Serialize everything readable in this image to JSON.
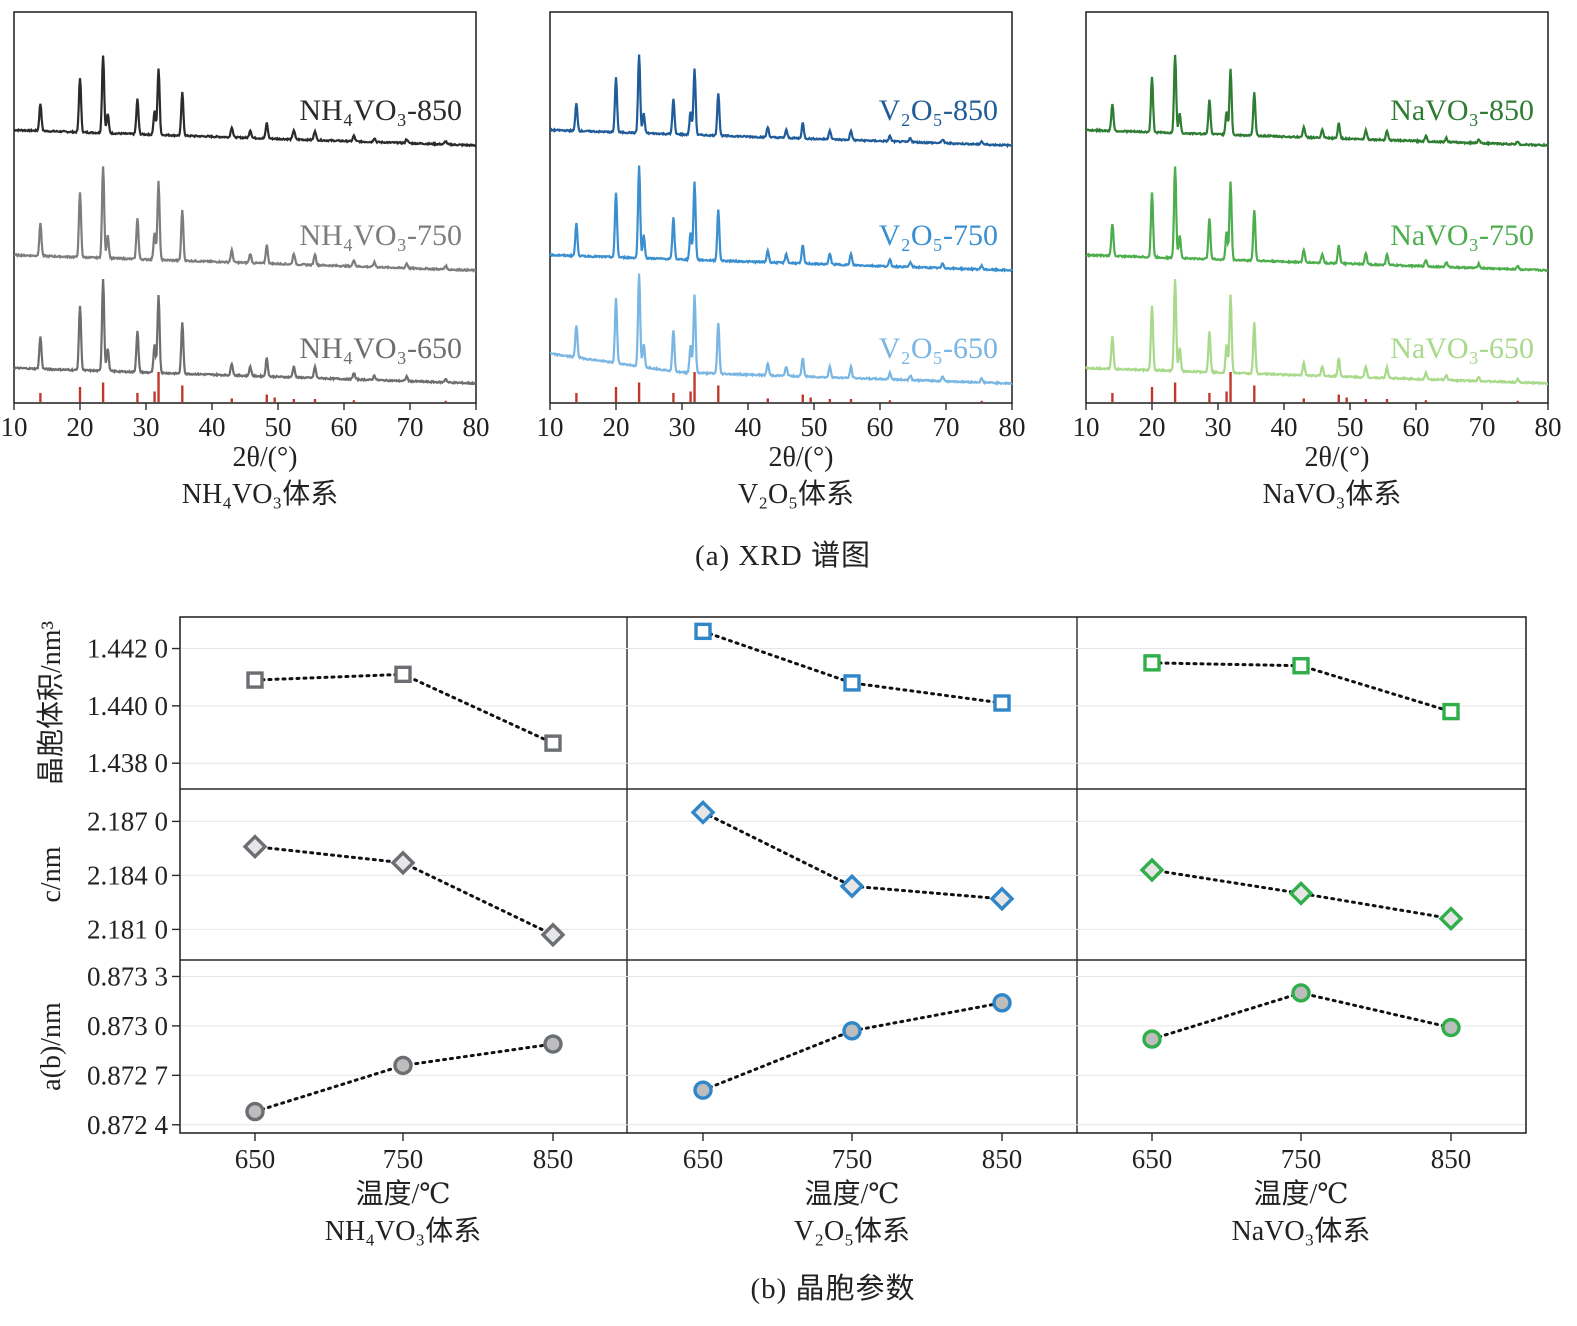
{
  "captions": {
    "a": "(a) XRD 谱图",
    "b": "(b) 晶胞参数"
  },
  "xrd": {
    "xlabel": "2θ/(°)",
    "xticks": [
      10,
      20,
      30,
      40,
      50,
      60,
      70,
      80
    ],
    "panels": [
      {
        "system": "NH₄VO₃体系",
        "labels": [
          "NH₄VO₃-850",
          "NH₄VO₃-750",
          "NH₄VO₃-650"
        ],
        "colors": [
          "#2b2b2b",
          "#7d7d7d",
          "#6e6e6e"
        ]
      },
      {
        "system": "V₂O₅体系",
        "labels": [
          "V₂O₅-850",
          "V₂O₅-750",
          "V₂O₅-650"
        ],
        "colors": [
          "#1f5c99",
          "#3a8fd0",
          "#7ab6e3"
        ]
      },
      {
        "system": "NaVO₃体系",
        "labels": [
          "NaVO₃-850",
          "NaVO₃-750",
          "NaVO₃-650"
        ],
        "colors": [
          "#2e7d32",
          "#4cae4c",
          "#a9d98a"
        ]
      }
    ],
    "reference_color": "#c0392b"
  },
  "cell": {
    "xlabel": "温度/℃",
    "temperatures": [
      650,
      750,
      850
    ],
    "rows": [
      {
        "ylabel": "晶胞体积/nm³",
        "marker": "square",
        "yticks": [
          "1.442 0",
          "1.440 0",
          "1.438 0"
        ],
        "ytick_values": [
          1.442,
          1.44,
          1.438
        ],
        "ylim": [
          1.4371,
          1.4431
        ]
      },
      {
        "ylabel": "c/nm",
        "marker": "diamond",
        "yticks": [
          "2.187 0",
          "2.184 0",
          "2.181 0"
        ],
        "ytick_values": [
          2.187,
          2.184,
          2.181
        ],
        "ylim": [
          2.1793,
          2.1888
        ]
      },
      {
        "ylabel": "a(b)/nm",
        "marker": "circle",
        "yticks": [
          "0.873 3",
          "0.873 0",
          "0.872 7",
          "0.872 4"
        ],
        "ytick_values": [
          0.8733,
          0.873,
          0.8727,
          0.8724
        ],
        "ylim": [
          0.87235,
          0.8734
        ]
      }
    ],
    "systems": [
      {
        "name": "NH₄VO₃体系",
        "color": "#6b6e72"
      },
      {
        "name": "V₂O₅体系",
        "color": "#2f86c8"
      },
      {
        "name": "NaVO₃体系",
        "color": "#2fae4a"
      }
    ]
  },
  "chart_data": [
    {
      "type": "line",
      "title": "(a) XRD 谱图",
      "xlabel": "2θ/(°)",
      "xlim": [
        10,
        80
      ],
      "panels": [
        "NH₄VO₃体系",
        "V₂O₅体系",
        "NaVO₃体系"
      ],
      "series": [
        {
          "name": "NH₄VO₃-850",
          "panel": 0
        },
        {
          "name": "NH₄VO₃-750",
          "panel": 0
        },
        {
          "name": "NH₄VO₃-650",
          "panel": 0
        },
        {
          "name": "V₂O₅-850",
          "panel": 1
        },
        {
          "name": "V₂O₅-750",
          "panel": 1
        },
        {
          "name": "V₂O₅-650",
          "panel": 1
        },
        {
          "name": "NaVO₃-850",
          "panel": 2
        },
        {
          "name": "NaVO₃-750",
          "panel": 2
        },
        {
          "name": "NaVO₃-650",
          "panel": 2
        }
      ],
      "peaks": [
        {
          "x": 14.0,
          "h": 0.35
        },
        {
          "x": 20.0,
          "h": 0.7
        },
        {
          "x": 23.5,
          "h": 1.0
        },
        {
          "x": 24.2,
          "h": 0.25
        },
        {
          "x": 28.7,
          "h": 0.45
        },
        {
          "x": 31.3,
          "h": 0.3
        },
        {
          "x": 31.9,
          "h": 0.85
        },
        {
          "x": 35.5,
          "h": 0.55
        },
        {
          "x": 43.0,
          "h": 0.13
        },
        {
          "x": 45.8,
          "h": 0.1
        },
        {
          "x": 48.3,
          "h": 0.2
        },
        {
          "x": 52.4,
          "h": 0.12
        },
        {
          "x": 55.6,
          "h": 0.12
        },
        {
          "x": 61.5,
          "h": 0.07
        },
        {
          "x": 64.6,
          "h": 0.05
        },
        {
          "x": 69.5,
          "h": 0.05
        },
        {
          "x": 75.4,
          "h": 0.04
        }
      ],
      "reference_peaks": [
        {
          "x": 14.0,
          "h": 0.3
        },
        {
          "x": 20.0,
          "h": 0.5
        },
        {
          "x": 23.5,
          "h": 0.65
        },
        {
          "x": 28.7,
          "h": 0.3
        },
        {
          "x": 31.3,
          "h": 0.35
        },
        {
          "x": 31.9,
          "h": 1.0
        },
        {
          "x": 35.5,
          "h": 0.55
        },
        {
          "x": 43.0,
          "h": 0.12
        },
        {
          "x": 48.3,
          "h": 0.25
        },
        {
          "x": 49.5,
          "h": 0.15
        },
        {
          "x": 52.4,
          "h": 0.1
        },
        {
          "x": 55.6,
          "h": 0.1
        },
        {
          "x": 61.5,
          "h": 0.06
        },
        {
          "x": 75.4,
          "h": 0.04
        }
      ]
    },
    {
      "type": "scatter",
      "title": "(b) 晶胞参数",
      "xlabel": "温度/℃",
      "x": [
        650,
        750,
        850
      ],
      "series": [
        {
          "name": "NH₄VO₃体系",
          "volume": [
            1.4409,
            1.4411,
            1.4387
          ],
          "c": [
            2.1856,
            2.1847,
            2.1807
          ],
          "a": [
            0.87248,
            0.87276,
            0.87289
          ]
        },
        {
          "name": "V₂O₅体系",
          "volume": [
            1.4426,
            1.4408,
            1.4401
          ],
          "c": [
            2.1875,
            2.1834,
            2.1827
          ],
          "a": [
            0.87261,
            0.87297,
            0.87314
          ]
        },
        {
          "name": "NaVO₃体系",
          "volume": [
            1.4415,
            1.4414,
            1.4398
          ],
          "c": [
            2.1843,
            2.183,
            2.1816
          ],
          "a": [
            0.87292,
            0.8732,
            0.87299
          ]
        }
      ]
    }
  ]
}
